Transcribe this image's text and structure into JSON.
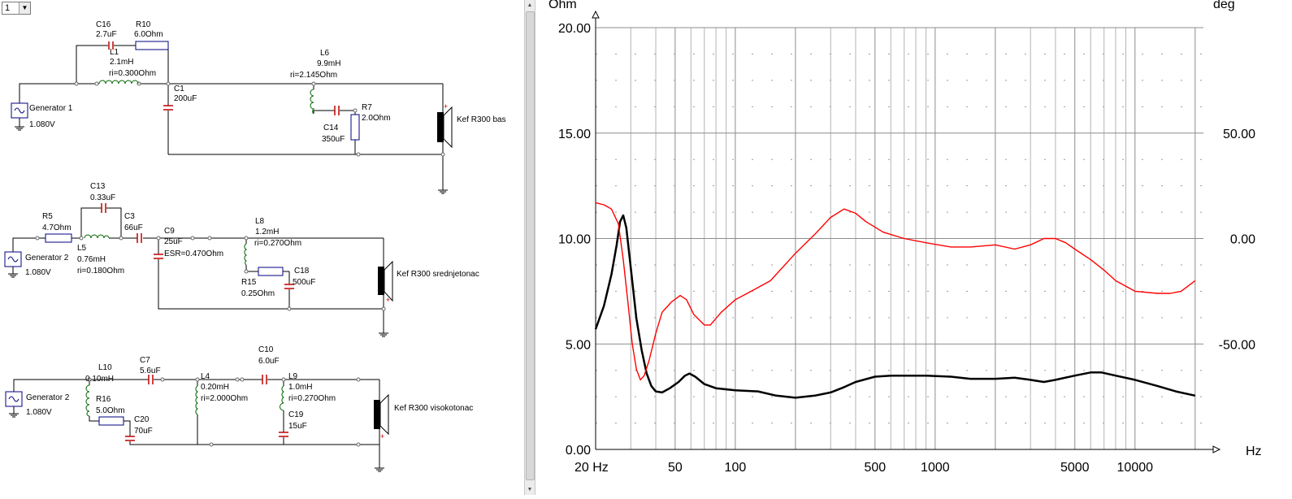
{
  "selector": {
    "value": "1"
  },
  "icons": {
    "scroll_up": "scroll-up-arrow",
    "scroll_down": "scroll-down-arrow",
    "dropdown": "chevron-down"
  },
  "colors": {
    "impedance": "#000000",
    "phase": "#ff0000",
    "wire": "#000000",
    "capacitor": "#c00000",
    "inductor": "#006400",
    "resistor": "#000080"
  },
  "schematic": {
    "section1": {
      "generator": {
        "name": "Generator 1",
        "voltage": "1.080V"
      },
      "c16": {
        "name": "C16",
        "value": "2.7uF"
      },
      "r10": {
        "name": "R10",
        "value": "6.0Ohm"
      },
      "l1": {
        "name": "L1",
        "value": "2.1mH",
        "ri": "ri=0.300Ohm"
      },
      "l6": {
        "name": "L6",
        "value": "9.9mH",
        "ri": "ri=2.145Ohm"
      },
      "c1": {
        "name": "C1",
        "value": "200uF"
      },
      "r7": {
        "name": "R7",
        "value": "2.0Ohm"
      },
      "c14": {
        "name": "C14",
        "value": "350uF"
      },
      "speaker": {
        "name": "Kef R300 bas"
      }
    },
    "section2": {
      "generator": {
        "name": "Generator 2",
        "voltage": "1.080V"
      },
      "r5": {
        "name": "R5",
        "value": "4.7Ohm"
      },
      "c13": {
        "name": "C13",
        "value": "0.33uF"
      },
      "c3": {
        "name": "C3",
        "value": "66uF"
      },
      "l5": {
        "name": "L5",
        "value": "0.76mH",
        "ri": "ri=0.180Ohm"
      },
      "c9": {
        "name": "C9",
        "value": "25uF",
        "esr": "ESR=0.470Ohm"
      },
      "l8": {
        "name": "L8",
        "value": "1.2mH",
        "ri": "ri=0.270Ohm"
      },
      "r15": {
        "name": "R15",
        "value": "0.25Ohm"
      },
      "c18": {
        "name": "C18",
        "value": "500uF"
      },
      "speaker": {
        "name": "Kef R300 srednjetonac"
      }
    },
    "section3": {
      "generator": {
        "name": "Generator 2",
        "voltage": "1.080V"
      },
      "l10": {
        "name": "L10",
        "value": "0.10mH"
      },
      "r16": {
        "name": "R16",
        "value": "5.0Ohm"
      },
      "c20": {
        "name": "C20",
        "value": "70uF"
      },
      "c7": {
        "name": "C7",
        "value": "5.6uF"
      },
      "l4": {
        "name": "L4",
        "value": "0.20mH",
        "ri": "ri=2.000Ohm"
      },
      "c10": {
        "name": "C10",
        "value": "6.0uF"
      },
      "l9": {
        "name": "L9",
        "value": "1.0mH",
        "ri": "ri=0.270Ohm"
      },
      "c19": {
        "name": "C19",
        "value": "15uF"
      },
      "speaker": {
        "name": "Kef R300 visokotonac"
      }
    }
  },
  "chart_data": {
    "type": "line",
    "left_unit": "Ohm",
    "right_unit": "deg",
    "x_unit": "Hz",
    "x_scale": "log",
    "xlim": [
      20,
      22000
    ],
    "ylim_left": [
      0,
      20
    ],
    "ylim_right": [
      -100,
      100
    ],
    "grid": true,
    "x_ticks": [
      {
        "value": 20,
        "label": "20 Hz"
      },
      {
        "value": 50,
        "label": "50"
      },
      {
        "value": 100,
        "label": "100"
      },
      {
        "value": 500,
        "label": "500"
      },
      {
        "value": 1000,
        "label": "1000"
      },
      {
        "value": 5000,
        "label": "5000"
      },
      {
        "value": 10000,
        "label": "10000"
      }
    ],
    "y_ticks_left": [
      {
        "value": 20,
        "label": "20.00"
      },
      {
        "value": 15,
        "label": "15.00"
      },
      {
        "value": 10,
        "label": "10.00"
      },
      {
        "value": 5,
        "label": "5.00"
      },
      {
        "value": 0,
        "label": "0.00"
      }
    ],
    "y_ticks_right": [
      {
        "value": 50,
        "label": "50.00"
      },
      {
        "value": 0,
        "label": "0.00"
      },
      {
        "value": -50,
        "label": "-50.00"
      }
    ],
    "series": [
      {
        "axis": "left",
        "color": "#000000",
        "points": [
          [
            20,
            5.7
          ],
          [
            22,
            6.8
          ],
          [
            24,
            8.3
          ],
          [
            25.5,
            9.7
          ],
          [
            26.5,
            10.8
          ],
          [
            27.5,
            11.1
          ],
          [
            28.5,
            10.5
          ],
          [
            30,
            8.6
          ],
          [
            32,
            6.2
          ],
          [
            34,
            4.7
          ],
          [
            36,
            3.6
          ],
          [
            38,
            3.0
          ],
          [
            40,
            2.75
          ],
          [
            43,
            2.7
          ],
          [
            47,
            2.9
          ],
          [
            52,
            3.2
          ],
          [
            56,
            3.5
          ],
          [
            59,
            3.6
          ],
          [
            63,
            3.45
          ],
          [
            70,
            3.1
          ],
          [
            80,
            2.9
          ],
          [
            100,
            2.8
          ],
          [
            130,
            2.75
          ],
          [
            160,
            2.55
          ],
          [
            200,
            2.45
          ],
          [
            250,
            2.55
          ],
          [
            300,
            2.7
          ],
          [
            350,
            2.95
          ],
          [
            400,
            3.2
          ],
          [
            500,
            3.45
          ],
          [
            600,
            3.5
          ],
          [
            700,
            3.5
          ],
          [
            900,
            3.5
          ],
          [
            1200,
            3.45
          ],
          [
            1500,
            3.35
          ],
          [
            2000,
            3.35
          ],
          [
            2500,
            3.4
          ],
          [
            3000,
            3.3
          ],
          [
            3500,
            3.2
          ],
          [
            4000,
            3.3
          ],
          [
            5000,
            3.5
          ],
          [
            6000,
            3.65
          ],
          [
            6800,
            3.65
          ],
          [
            8000,
            3.5
          ],
          [
            10000,
            3.3
          ],
          [
            13000,
            3.0
          ],
          [
            16000,
            2.75
          ],
          [
            20000,
            2.55
          ]
        ]
      },
      {
        "axis": "right",
        "color": "#ff0000",
        "points": [
          [
            20,
            17
          ],
          [
            22,
            16
          ],
          [
            24,
            14
          ],
          [
            26,
            7
          ],
          [
            27.5,
            -10
          ],
          [
            29,
            -30
          ],
          [
            30.5,
            -50
          ],
          [
            32,
            -62
          ],
          [
            33.5,
            -67
          ],
          [
            35,
            -65
          ],
          [
            37,
            -58
          ],
          [
            40,
            -45
          ],
          [
            43,
            -35
          ],
          [
            48,
            -30
          ],
          [
            53,
            -27
          ],
          [
            57,
            -29
          ],
          [
            62,
            -36
          ],
          [
            70,
            -41
          ],
          [
            75,
            -41
          ],
          [
            85,
            -35
          ],
          [
            100,
            -29
          ],
          [
            120,
            -25
          ],
          [
            150,
            -20
          ],
          [
            200,
            -7
          ],
          [
            250,
            2
          ],
          [
            300,
            10
          ],
          [
            350,
            14
          ],
          [
            400,
            12
          ],
          [
            450,
            8
          ],
          [
            550,
            3
          ],
          [
            700,
            0
          ],
          [
            900,
            -2
          ],
          [
            1200,
            -4
          ],
          [
            1500,
            -4
          ],
          [
            2000,
            -3
          ],
          [
            2500,
            -5
          ],
          [
            3000,
            -3
          ],
          [
            3500,
            0
          ],
          [
            4000,
            0
          ],
          [
            4500,
            -2
          ],
          [
            5000,
            -5
          ],
          [
            6000,
            -10
          ],
          [
            7000,
            -15
          ],
          [
            8000,
            -20
          ],
          [
            10000,
            -25
          ],
          [
            13000,
            -26
          ],
          [
            15000,
            -26
          ],
          [
            17000,
            -25
          ],
          [
            20000,
            -20
          ]
        ]
      }
    ]
  }
}
